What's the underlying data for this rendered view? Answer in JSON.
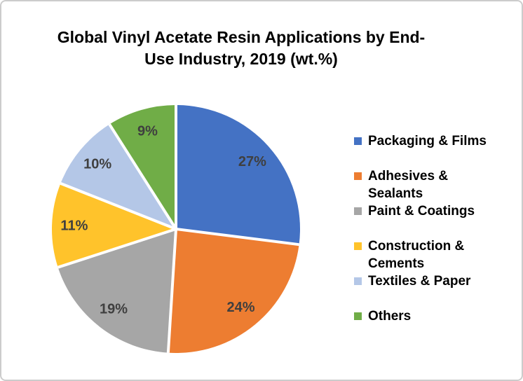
{
  "frame": {
    "background": "#ffffff",
    "border_color": "#cccccc"
  },
  "chart_data": {
    "type": "pie",
    "title": "Global Vinyl Acetate Resin Applications by End-Use Industry, 2019 (wt.%)",
    "title_lines": [
      "Global Vinyl Acetate Resin Applications by End-",
      "Use Industry, 2019 (wt.%)"
    ],
    "unit": "wt.%",
    "start_angle_deg": 0,
    "direction": "clockwise",
    "legend_position": "right",
    "data_label_color": "#3F3F3F",
    "separator_color": "#ffffff",
    "slices": [
      {
        "label": "Packaging & Films",
        "value": 27,
        "data_label": "27%",
        "color": "#4472C4"
      },
      {
        "label": "Adhesives & Sealants",
        "value": 24,
        "data_label": "24%",
        "color": "#ED7D31"
      },
      {
        "label": "Paint & Coatings",
        "value": 19,
        "data_label": "19%",
        "color": "#A6A6A6"
      },
      {
        "label": "Construction & Cements",
        "value": 11,
        "data_label": "11%",
        "color": "#FFC32B"
      },
      {
        "label": "Textiles & Paper",
        "value": 10,
        "data_label": "10%",
        "color": "#B4C7E7"
      },
      {
        "label": "Others",
        "value": 9,
        "data_label": "9%",
        "color": "#70AD47"
      }
    ]
  }
}
